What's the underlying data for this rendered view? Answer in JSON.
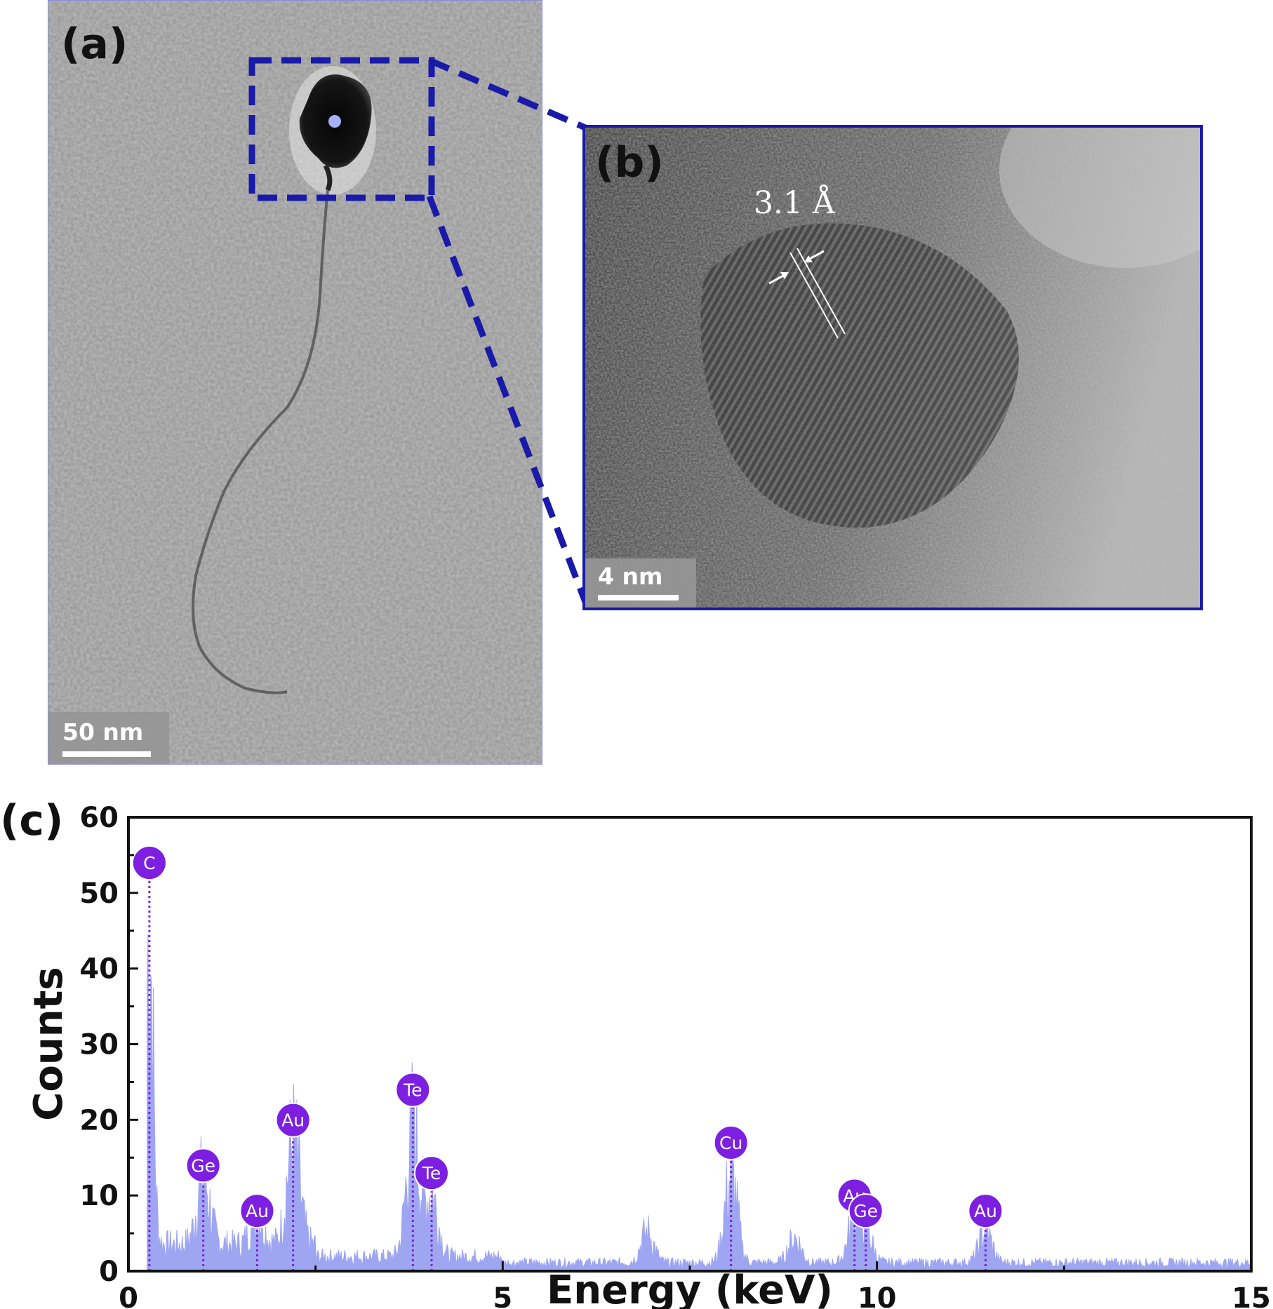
{
  "panels": {
    "a": {
      "letter": "(a)",
      "scalebar": "50 nm"
    },
    "b": {
      "letter": "(b)",
      "scalebar": "4 nm",
      "spacing_label": "3.1 Å"
    },
    "c": {
      "letter": "(c)"
    }
  },
  "colors": {
    "inset_box": "#1a1aa8",
    "spectrum_fill": "#9ea6f2",
    "marker_fill": "#7c1fe0",
    "marker_line": "#7c1fe0",
    "axis": "#111111"
  },
  "chart_data": {
    "type": "area",
    "xlabel": "Energy (keV)",
    "ylabel": "Counts",
    "xlim": [
      0,
      15
    ],
    "ylim": [
      0,
      60
    ],
    "xticks": [
      0,
      5,
      10,
      15
    ],
    "yticks": [
      0,
      10,
      20,
      30,
      40,
      50,
      60
    ],
    "background_level": 2,
    "peaks": [
      {
        "element": "C",
        "energy": 0.28,
        "counts": 51
      },
      {
        "element": "Ge",
        "energy": 1.0,
        "counts": 11
      },
      {
        "element": "Au",
        "energy": 1.72,
        "counts": 5
      },
      {
        "element": "Au",
        "energy": 2.2,
        "counts": 17
      },
      {
        "element": "Te",
        "energy": 3.8,
        "counts": 21
      },
      {
        "element": "Te",
        "energy": 4.05,
        "counts": 10
      },
      {
        "element": "Cu",
        "energy": 8.05,
        "counts": 14
      },
      {
        "element": "Au",
        "energy": 9.7,
        "counts": 7
      },
      {
        "element": "Ge",
        "energy": 9.85,
        "counts": 5
      },
      {
        "element": "Au",
        "energy": 11.45,
        "counts": 5
      }
    ],
    "extra_features": [
      {
        "energy": 6.93,
        "counts": 5
      },
      {
        "energy": 8.9,
        "counts": 4
      }
    ]
  }
}
